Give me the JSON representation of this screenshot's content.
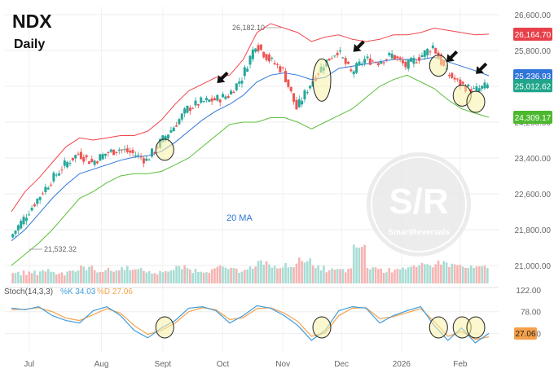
{
  "header": {
    "title": "NDX",
    "subtitle": "Daily"
  },
  "colors": {
    "up": "#26a69a",
    "down": "#ef5350",
    "upper_band": "#f2464d",
    "lower_band": "#5cbf3a",
    "ma": "#2f74d9",
    "k": "#3f9ddc",
    "d": "#f5a14a",
    "highlight": "#f8f0a8",
    "arrow": "#111111"
  },
  "chart_data": [
    {
      "type": "candlestick",
      "title": "NDX",
      "subtitle": "Daily",
      "yticks": [
        "26,600.00",
        "25,800.00",
        "25,000.00",
        "24,200.00",
        "23,400.00",
        "22,600.00",
        "21,800.00",
        "21,000.00"
      ],
      "ylim": [
        20800,
        26800
      ],
      "xticks": [
        "Jul",
        "Aug",
        "Sept",
        "Oct",
        "Nov",
        "Dec",
        "2026",
        "Feb"
      ],
      "price_labels": [
        {
          "label": "26,164.70",
          "value": 26164.7,
          "color": "#e8404a"
        },
        {
          "label": "25,236.93",
          "value": 25236.93,
          "color": "#2f74d9"
        },
        {
          "label": "25,012.62",
          "value": 25012.62,
          "color": "#20a58a"
        },
        {
          "label": "24,309.17",
          "value": 24309.17,
          "color": "#4cb82e"
        }
      ],
      "annotations": [
        {
          "text": "26,182.10",
          "value": 26182.1
        },
        {
          "text": "21,532.32",
          "value": 21532.32
        },
        {
          "text": "20 MA"
        }
      ],
      "series": [
        {
          "name": "Price",
          "points": [
            {
              "date": "Jun 23",
              "close": 21620
            },
            {
              "date": "Jun 30",
              "close": 22050
            },
            {
              "date": "Jul 07",
              "close": 22480
            },
            {
              "date": "Jul 14",
              "close": 22900
            },
            {
              "date": "Jul 21",
              "close": 23250
            },
            {
              "date": "Jul 28",
              "close": 23500
            },
            {
              "date": "Aug 04",
              "close": 23300
            },
            {
              "date": "Aug 11",
              "close": 23500
            },
            {
              "date": "Aug 18",
              "close": 23600
            },
            {
              "date": "Aug 25",
              "close": 23500
            },
            {
              "date": "Sep 01",
              "close": 23350
            },
            {
              "date": "Sep 08",
              "close": 23750
            },
            {
              "date": "Sep 15",
              "close": 24100
            },
            {
              "date": "Sep 22",
              "close": 24500
            },
            {
              "date": "Sep 29",
              "close": 24650
            },
            {
              "date": "Oct 06",
              "close": 24700
            },
            {
              "date": "Oct 13",
              "close": 24800
            },
            {
              "date": "Oct 20",
              "close": 25200
            },
            {
              "date": "Oct 27",
              "close": 25950
            },
            {
              "date": "Nov 03",
              "close": 25600
            },
            {
              "date": "Nov 10",
              "close": 25350
            },
            {
              "date": "Nov 17",
              "close": 24500
            },
            {
              "date": "Nov 24",
              "close": 25050
            },
            {
              "date": "Dec 01",
              "close": 25500
            },
            {
              "date": "Dec 08",
              "close": 25800
            },
            {
              "date": "Dec 15",
              "close": 25300
            },
            {
              "date": "Dec 22",
              "close": 25600
            },
            {
              "date": "Dec 29",
              "close": 25550
            },
            {
              "date": "Jan 05",
              "close": 25700
            },
            {
              "date": "Jan 12",
              "close": 25450
            },
            {
              "date": "Jan 19",
              "close": 25650
            },
            {
              "date": "Jan 26",
              "close": 25900
            },
            {
              "date": "Feb 02",
              "close": 25300
            },
            {
              "date": "Feb 09",
              "close": 25050
            },
            {
              "date": "Feb 16",
              "close": 24900
            },
            {
              "date": "Feb 23",
              "close": 25012.62
            }
          ]
        },
        {
          "name": "Upper band",
          "values": [
            22200,
            22650,
            22950,
            23300,
            23650,
            23850,
            23800,
            23850,
            23900,
            23900,
            24000,
            24250,
            24600,
            24900,
            25050,
            25200,
            25250,
            25600,
            26200,
            26400,
            26300,
            26200,
            26000,
            26100,
            26150,
            26050,
            26000,
            26050,
            26150,
            26150,
            26200,
            26300,
            26250,
            26200,
            26150,
            26164.7
          ]
        },
        {
          "name": "20 MA",
          "values": [
            21550,
            21800,
            22150,
            22500,
            22800,
            23050,
            23150,
            23250,
            23350,
            23420,
            23450,
            23550,
            23750,
            24000,
            24250,
            24450,
            24600,
            24800,
            25100,
            25250,
            25300,
            25250,
            25150,
            25200,
            25400,
            25450,
            25500,
            25550,
            25600,
            25600,
            25600,
            25650,
            25550,
            25450,
            25350,
            25236.93
          ]
        },
        {
          "name": "Lower band",
          "values": [
            21000,
            21250,
            21500,
            21800,
            22150,
            22500,
            22650,
            22850,
            23000,
            23050,
            23050,
            23100,
            23250,
            23400,
            23650,
            23900,
            24150,
            24200,
            24200,
            24300,
            24300,
            24200,
            24050,
            24200,
            24350,
            24500,
            24750,
            25000,
            25150,
            25250,
            25100,
            24950,
            24700,
            24500,
            24400,
            24309.17
          ]
        }
      ],
      "volume": [
        4,
        4,
        5,
        4,
        5,
        6,
        5,
        5,
        6,
        5,
        4,
        5,
        6,
        5,
        5,
        6,
        5,
        6,
        8,
        6,
        7,
        9,
        6,
        5,
        5,
        14,
        6,
        5,
        6,
        6,
        7,
        8,
        7,
        6,
        6,
        5
      ],
      "highlight_dates": [
        "Sep 02",
        "Nov 21",
        "Jan 20",
        "Feb 02",
        "Feb 09"
      ],
      "arrow_dates": [
        "Oct 01",
        "Dec 10",
        "Jan 27",
        "Feb 12"
      ]
    },
    {
      "type": "line",
      "title": "Stoch(14,3,3)",
      "legend": [
        {
          "name": "%K",
          "value": "34.03"
        },
        {
          "name": "%D",
          "value": "27.06"
        }
      ],
      "yticks": [
        "122.00",
        "78.00",
        "34.00"
      ],
      "ylim": [
        0,
        122
      ],
      "last_label": "27.06",
      "series": [
        {
          "name": "%K",
          "values": [
            85,
            82,
            88,
            70,
            60,
            55,
            80,
            88,
            70,
            40,
            25,
            45,
            60,
            85,
            88,
            80,
            55,
            70,
            90,
            85,
            70,
            50,
            20,
            40,
            80,
            88,
            85,
            55,
            70,
            80,
            88,
            50,
            20,
            45,
            15,
            34.03
          ]
        },
        {
          "name": "%D",
          "values": [
            82,
            83,
            86,
            78,
            65,
            60,
            72,
            84,
            75,
            50,
            32,
            40,
            55,
            78,
            86,
            82,
            62,
            66,
            84,
            86,
            75,
            58,
            28,
            35,
            70,
            85,
            86,
            64,
            68,
            76,
            84,
            58,
            28,
            38,
            22,
            27.06
          ]
        }
      ]
    }
  ],
  "watermark": {
    "logo_text": "S/R",
    "name": "SmartReversals"
  }
}
